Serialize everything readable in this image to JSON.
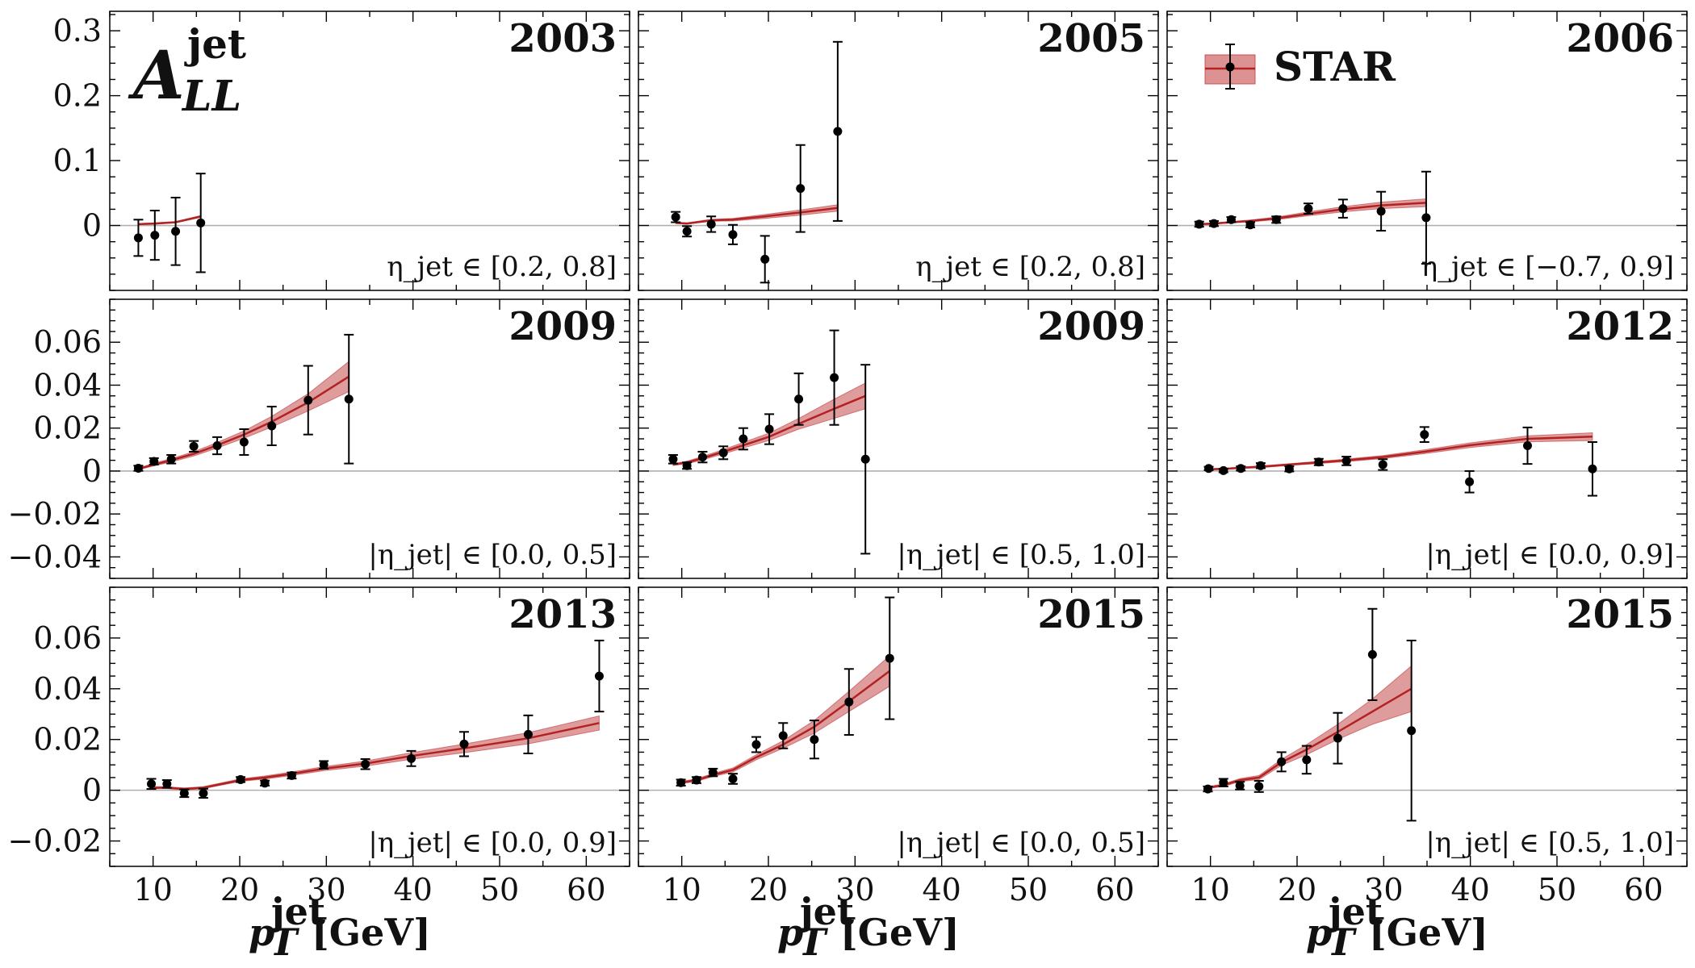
{
  "figure": {
    "observable": {
      "main": "A",
      "sup": "jet",
      "sub": "LL"
    },
    "xlabel": {
      "main": "p",
      "sup": "jet",
      "sub": "T",
      "unit": "[GeV]"
    },
    "legend": {
      "label": "STAR"
    },
    "colors": {
      "band": "#c0393b",
      "line": "#b22222",
      "points": "#000000",
      "zero_line": "#b0b0b0"
    }
  },
  "chart_data": [
    {
      "type": "line",
      "year": "2003",
      "eta_range": "η_jet ∈ [0.2, 0.8]",
      "xlim": [
        5,
        65
      ],
      "ylim": [
        -0.1,
        0.33
      ],
      "yticks": [
        0,
        0.1,
        0.2,
        0.3
      ],
      "ytick_labels": [
        "0",
        "0.1",
        "0.2",
        "0.3"
      ],
      "xticks": [
        10,
        20,
        30,
        40,
        50,
        60
      ],
      "xtick_labels": [
        "10",
        "20",
        "30",
        "40",
        "50",
        "60"
      ],
      "points": [
        {
          "x": 8.3,
          "y": -0.019,
          "err": 0.028
        },
        {
          "x": 10.2,
          "y": -0.015,
          "err": 0.038
        },
        {
          "x": 12.6,
          "y": -0.009,
          "err": 0.052
        },
        {
          "x": 15.5,
          "y": 0.004,
          "err": 0.076
        }
      ],
      "theory": {
        "x": [
          8.3,
          10.2,
          12.6,
          15.5
        ],
        "y": [
          0.002,
          0.003,
          0.005,
          0.014
        ],
        "band": [
          0.001,
          0.001,
          0.001,
          0.0015
        ]
      }
    },
    {
      "type": "line",
      "year": "2005",
      "eta_range": "η_jet ∈ [0.2, 0.8]",
      "xlim": [
        5,
        65
      ],
      "ylim": [
        -0.1,
        0.33
      ],
      "yticks": [
        0,
        0.1,
        0.2,
        0.3
      ],
      "ytick_labels": [
        "0",
        "0.1",
        "0.2",
        "0.3"
      ],
      "xticks": [
        10,
        20,
        30,
        40,
        50,
        60
      ],
      "xtick_labels": [
        "10",
        "20",
        "30",
        "40",
        "50",
        "60"
      ],
      "points": [
        {
          "x": 9.3,
          "y": 0.013,
          "err": 0.008
        },
        {
          "x": 10.6,
          "y": -0.009,
          "err": 0.008
        },
        {
          "x": 13.4,
          "y": 0.002,
          "err": 0.012
        },
        {
          "x": 15.9,
          "y": -0.014,
          "err": 0.015
        },
        {
          "x": 19.6,
          "y": -0.052,
          "err": 0.036
        },
        {
          "x": 23.7,
          "y": 0.057,
          "err": 0.067
        },
        {
          "x": 28.0,
          "y": 0.145,
          "err": 0.138
        }
      ],
      "theory": {
        "x": [
          9.3,
          10.6,
          13.4,
          15.9,
          19.6,
          23.7,
          28.0
        ],
        "y": [
          0.004,
          0.003,
          0.008,
          0.009,
          0.014,
          0.02,
          0.027
        ],
        "band": [
          0.001,
          0.001,
          0.0015,
          0.002,
          0.003,
          0.004,
          0.005
        ]
      }
    },
    {
      "type": "line",
      "year": "2006",
      "eta_range": "η_jet ∈ [−0.7, 0.9]",
      "xlim": [
        5,
        65
      ],
      "ylim": [
        -0.1,
        0.33
      ],
      "yticks": [
        0,
        0.1,
        0.2,
        0.3
      ],
      "ytick_labels": [
        "0",
        "0.1",
        "0.2",
        "0.3"
      ],
      "xticks": [
        10,
        20,
        30,
        40,
        50,
        60
      ],
      "xtick_labels": [
        "10",
        "20",
        "30",
        "40",
        "50",
        "60"
      ],
      "points": [
        {
          "x": 8.7,
          "y": 0.002,
          "err": 0.004
        },
        {
          "x": 10.4,
          "y": 0.003,
          "err": 0.004
        },
        {
          "x": 12.4,
          "y": 0.009,
          "err": 0.004
        },
        {
          "x": 14.6,
          "y": 0.001,
          "err": 0.004
        },
        {
          "x": 17.6,
          "y": 0.009,
          "err": 0.005
        },
        {
          "x": 21.3,
          "y": 0.026,
          "err": 0.008
        },
        {
          "x": 25.3,
          "y": 0.026,
          "err": 0.014
        },
        {
          "x": 29.7,
          "y": 0.022,
          "err": 0.03
        },
        {
          "x": 34.9,
          "y": 0.012,
          "err": 0.071
        }
      ],
      "theory": {
        "x": [
          8.7,
          10.4,
          12.4,
          14.6,
          17.6,
          21.3,
          25.3,
          29.7,
          34.9
        ],
        "y": [
          0.002,
          0.003,
          0.005,
          0.007,
          0.011,
          0.018,
          0.025,
          0.031,
          0.035
        ],
        "band": [
          0.001,
          0.001,
          0.001,
          0.0015,
          0.002,
          0.003,
          0.004,
          0.005,
          0.006
        ]
      }
    },
    {
      "type": "line",
      "year": "2009",
      "eta_range": "|η_jet| ∈ [0.0, 0.5]",
      "xlim": [
        5,
        65
      ],
      "ylim": [
        -0.05,
        0.08
      ],
      "yticks": [
        -0.04,
        -0.02,
        0,
        0.02,
        0.04,
        0.06
      ],
      "ytick_labels": [
        "−0.04",
        "−0.02",
        "0",
        "0.02",
        "0.04",
        "0.06"
      ],
      "xticks": [
        10,
        20,
        30,
        40,
        50,
        60
      ],
      "xtick_labels": [
        "10",
        "20",
        "30",
        "40",
        "50",
        "60"
      ],
      "points": [
        {
          "x": 8.3,
          "y": 0.0013,
          "err": 0.0012
        },
        {
          "x": 10.1,
          "y": 0.0045,
          "err": 0.0015
        },
        {
          "x": 12.1,
          "y": 0.0055,
          "err": 0.002
        },
        {
          "x": 14.7,
          "y": 0.0115,
          "err": 0.0025
        },
        {
          "x": 17.4,
          "y": 0.0118,
          "err": 0.004
        },
        {
          "x": 20.5,
          "y": 0.0135,
          "err": 0.006
        },
        {
          "x": 23.7,
          "y": 0.021,
          "err": 0.009
        },
        {
          "x": 27.9,
          "y": 0.033,
          "err": 0.016
        },
        {
          "x": 32.6,
          "y": 0.0335,
          "err": 0.03
        }
      ],
      "theory": {
        "x": [
          8.3,
          10.1,
          12.1,
          14.7,
          17.4,
          20.5,
          23.7,
          27.9,
          32.6
        ],
        "y": [
          0.001,
          0.003,
          0.005,
          0.008,
          0.012,
          0.017,
          0.023,
          0.032,
          0.044
        ],
        "band": [
          0.0004,
          0.0006,
          0.0008,
          0.001,
          0.0013,
          0.0017,
          0.0025,
          0.004,
          0.007
        ]
      }
    },
    {
      "type": "line",
      "year": "2009",
      "eta_range": "|η_jet| ∈ [0.5, 1.0]",
      "xlim": [
        5,
        65
      ],
      "ylim": [
        -0.05,
        0.08
      ],
      "yticks": [
        -0.04,
        -0.02,
        0,
        0.02,
        0.04,
        0.06
      ],
      "ytick_labels": [
        "−0.04",
        "−0.02",
        "0",
        "0.02",
        "0.04",
        "0.06"
      ],
      "xticks": [
        10,
        20,
        30,
        40,
        50,
        60
      ],
      "xtick_labels": [
        "10",
        "20",
        "30",
        "40",
        "50",
        "60"
      ],
      "points": [
        {
          "x": 9.0,
          "y": 0.0055,
          "err": 0.002
        },
        {
          "x": 10.6,
          "y": 0.0025,
          "err": 0.0015
        },
        {
          "x": 12.4,
          "y": 0.0065,
          "err": 0.0025
        },
        {
          "x": 14.8,
          "y": 0.0085,
          "err": 0.003
        },
        {
          "x": 17.1,
          "y": 0.015,
          "err": 0.005
        },
        {
          "x": 20.1,
          "y": 0.0195,
          "err": 0.007
        },
        {
          "x": 23.5,
          "y": 0.0335,
          "err": 0.012
        },
        {
          "x": 27.6,
          "y": 0.0435,
          "err": 0.022
        },
        {
          "x": 31.2,
          "y": 0.0055,
          "err": 0.044
        }
      ],
      "theory": {
        "x": [
          9.0,
          10.6,
          12.4,
          14.8,
          17.1,
          20.1,
          23.5,
          27.6,
          31.2
        ],
        "y": [
          0.003,
          0.004,
          0.006,
          0.009,
          0.012,
          0.016,
          0.022,
          0.029,
          0.035
        ],
        "band": [
          0.0004,
          0.0006,
          0.0008,
          0.001,
          0.0013,
          0.0017,
          0.0025,
          0.0045,
          0.006
        ]
      }
    },
    {
      "type": "line",
      "year": "2012",
      "eta_range": "|η_jet| ∈ [0.0, 0.9]",
      "xlim": [
        5,
        65
      ],
      "ylim": [
        -0.05,
        0.08
      ],
      "yticks": [
        -0.04,
        -0.02,
        0,
        0.02,
        0.04,
        0.06
      ],
      "ytick_labels": [
        "−0.04",
        "−0.02",
        "0",
        "0.02",
        "0.04",
        "0.06"
      ],
      "xticks": [
        10,
        20,
        30,
        40,
        50,
        60
      ],
      "xtick_labels": [
        "10",
        "20",
        "30",
        "40",
        "50",
        "60"
      ],
      "points": [
        {
          "x": 9.8,
          "y": 0.0012,
          "err": 0.0008
        },
        {
          "x": 11.5,
          "y": 0.0002,
          "err": 0.0008
        },
        {
          "x": 13.5,
          "y": 0.0012,
          "err": 0.001
        },
        {
          "x": 15.8,
          "y": 0.0025,
          "err": 0.0012
        },
        {
          "x": 19.1,
          "y": 0.001,
          "err": 0.0012
        },
        {
          "x": 22.5,
          "y": 0.0042,
          "err": 0.0015
        },
        {
          "x": 25.7,
          "y": 0.0047,
          "err": 0.002
        },
        {
          "x": 29.9,
          "y": 0.003,
          "err": 0.0025
        },
        {
          "x": 34.7,
          "y": 0.017,
          "err": 0.0035
        },
        {
          "x": 39.9,
          "y": -0.005,
          "err": 0.005
        },
        {
          "x": 46.6,
          "y": 0.0118,
          "err": 0.0085
        },
        {
          "x": 54.1,
          "y": 0.001,
          "err": 0.0125
        }
      ],
      "theory": {
        "x": [
          9.8,
          11.5,
          13.5,
          15.8,
          19.1,
          22.5,
          25.7,
          29.9,
          34.7,
          39.9,
          46.6,
          54.1
        ],
        "y": [
          0.0008,
          0.001,
          0.0015,
          0.002,
          0.003,
          0.004,
          0.005,
          0.0065,
          0.009,
          0.012,
          0.015,
          0.016
        ],
        "band": [
          0.0003,
          0.0003,
          0.0003,
          0.0004,
          0.0004,
          0.0005,
          0.0006,
          0.0007,
          0.0009,
          0.0011,
          0.0014,
          0.0018
        ]
      }
    },
    {
      "type": "line",
      "year": "2013",
      "eta_range": "|η_jet| ∈ [0.0, 0.9]",
      "xlim": [
        5,
        65
      ],
      "ylim": [
        -0.03,
        0.08
      ],
      "yticks": [
        -0.02,
        0,
        0.02,
        0.04,
        0.06
      ],
      "ytick_labels": [
        "−0.02",
        "0",
        "0.02",
        "0.04",
        "0.06"
      ],
      "xticks": [
        10,
        20,
        30,
        40,
        50,
        60
      ],
      "xtick_labels": [
        "10",
        "20",
        "30",
        "40",
        "50",
        "60"
      ],
      "points": [
        {
          "x": 9.8,
          "y": 0.0025,
          "err": 0.002
        },
        {
          "x": 11.6,
          "y": 0.0025,
          "err": 0.0015
        },
        {
          "x": 13.6,
          "y": -0.0012,
          "err": 0.0015
        },
        {
          "x": 15.8,
          "y": -0.0012,
          "err": 0.0018
        },
        {
          "x": 20.1,
          "y": 0.0042,
          "err": 0.001
        },
        {
          "x": 22.9,
          "y": 0.0028,
          "err": 0.001
        },
        {
          "x": 26.0,
          "y": 0.0058,
          "err": 0.0012
        },
        {
          "x": 29.7,
          "y": 0.01,
          "err": 0.0015
        },
        {
          "x": 34.5,
          "y": 0.0103,
          "err": 0.002
        },
        {
          "x": 39.8,
          "y": 0.0125,
          "err": 0.003
        },
        {
          "x": 45.9,
          "y": 0.0182,
          "err": 0.0048
        },
        {
          "x": 53.3,
          "y": 0.022,
          "err": 0.0075
        },
        {
          "x": 61.5,
          "y": 0.045,
          "err": 0.014
        }
      ],
      "theory": {
        "x": [
          9.8,
          11.6,
          13.6,
          15.8,
          20.1,
          22.9,
          26.0,
          29.7,
          34.5,
          39.8,
          45.9,
          53.3,
          61.5
        ],
        "y": [
          0.001,
          0.001,
          0.0005,
          0.001,
          0.004,
          0.005,
          0.0065,
          0.0085,
          0.0105,
          0.0135,
          0.0165,
          0.0205,
          0.0265
        ],
        "band": [
          0.0004,
          0.0004,
          0.0004,
          0.0004,
          0.0005,
          0.0006,
          0.0007,
          0.0008,
          0.001,
          0.0013,
          0.0017,
          0.0022,
          0.0028
        ]
      }
    },
    {
      "type": "line",
      "year": "2015",
      "eta_range": "|η_jet| ∈ [0.0, 0.5]",
      "xlim": [
        5,
        65
      ],
      "ylim": [
        -0.03,
        0.08
      ],
      "yticks": [
        -0.02,
        0,
        0.02,
        0.04,
        0.06
      ],
      "ytick_labels": [
        "−0.02",
        "0",
        "0.02",
        "0.04",
        "0.06"
      ],
      "xticks": [
        10,
        20,
        30,
        40,
        50,
        60
      ],
      "xtick_labels": [
        "10",
        "20",
        "30",
        "40",
        "50",
        "60"
      ],
      "points": [
        {
          "x": 9.9,
          "y": 0.003,
          "err": 0.0012
        },
        {
          "x": 11.7,
          "y": 0.004,
          "err": 0.0012
        },
        {
          "x": 13.6,
          "y": 0.007,
          "err": 0.0015
        },
        {
          "x": 15.9,
          "y": 0.0045,
          "err": 0.002
        },
        {
          "x": 18.6,
          "y": 0.018,
          "err": 0.003
        },
        {
          "x": 21.7,
          "y": 0.0215,
          "err": 0.005
        },
        {
          "x": 25.3,
          "y": 0.02,
          "err": 0.0075
        },
        {
          "x": 29.3,
          "y": 0.0348,
          "err": 0.013
        },
        {
          "x": 34.0,
          "y": 0.052,
          "err": 0.024
        }
      ],
      "theory": {
        "x": [
          9.9,
          11.7,
          13.6,
          15.9,
          18.6,
          21.7,
          25.3,
          29.3,
          34.0
        ],
        "y": [
          0.003,
          0.004,
          0.006,
          0.008,
          0.013,
          0.018,
          0.025,
          0.035,
          0.047
        ],
        "band": [
          0.0004,
          0.0005,
          0.0006,
          0.0008,
          0.001,
          0.0015,
          0.0025,
          0.004,
          0.006
        ]
      }
    },
    {
      "type": "line",
      "year": "2015",
      "eta_range": "|η_jet| ∈ [0.5, 1.0]",
      "xlim": [
        5,
        65
      ],
      "ylim": [
        -0.03,
        0.08
      ],
      "yticks": [
        -0.02,
        0,
        0.02,
        0.04,
        0.06
      ],
      "ytick_labels": [
        "−0.02",
        "0",
        "0.02",
        "0.04",
        "0.06"
      ],
      "xticks": [
        10,
        20,
        30,
        40,
        50,
        60
      ],
      "xtick_labels": [
        "10",
        "20",
        "30",
        "40",
        "50",
        "60"
      ],
      "points": [
        {
          "x": 9.7,
          "y": 0.0005,
          "err": 0.001
        },
        {
          "x": 11.5,
          "y": 0.003,
          "err": 0.0015
        },
        {
          "x": 13.4,
          "y": 0.0018,
          "err": 0.0015
        },
        {
          "x": 15.6,
          "y": 0.0015,
          "err": 0.0022
        },
        {
          "x": 18.2,
          "y": 0.0112,
          "err": 0.0038
        },
        {
          "x": 21.1,
          "y": 0.012,
          "err": 0.0055
        },
        {
          "x": 24.7,
          "y": 0.0205,
          "err": 0.01
        },
        {
          "x": 28.7,
          "y": 0.0535,
          "err": 0.018
        },
        {
          "x": 33.2,
          "y": 0.0235,
          "err": 0.0355
        }
      ],
      "theory": {
        "x": [
          9.7,
          11.5,
          13.4,
          15.6,
          18.2,
          21.1,
          24.7,
          28.7,
          33.2
        ],
        "y": [
          0.001,
          0.002,
          0.004,
          0.005,
          0.011,
          0.016,
          0.023,
          0.031,
          0.04
        ],
        "band": [
          0.0004,
          0.0005,
          0.0006,
          0.0008,
          0.0012,
          0.002,
          0.003,
          0.005,
          0.009
        ]
      }
    }
  ]
}
